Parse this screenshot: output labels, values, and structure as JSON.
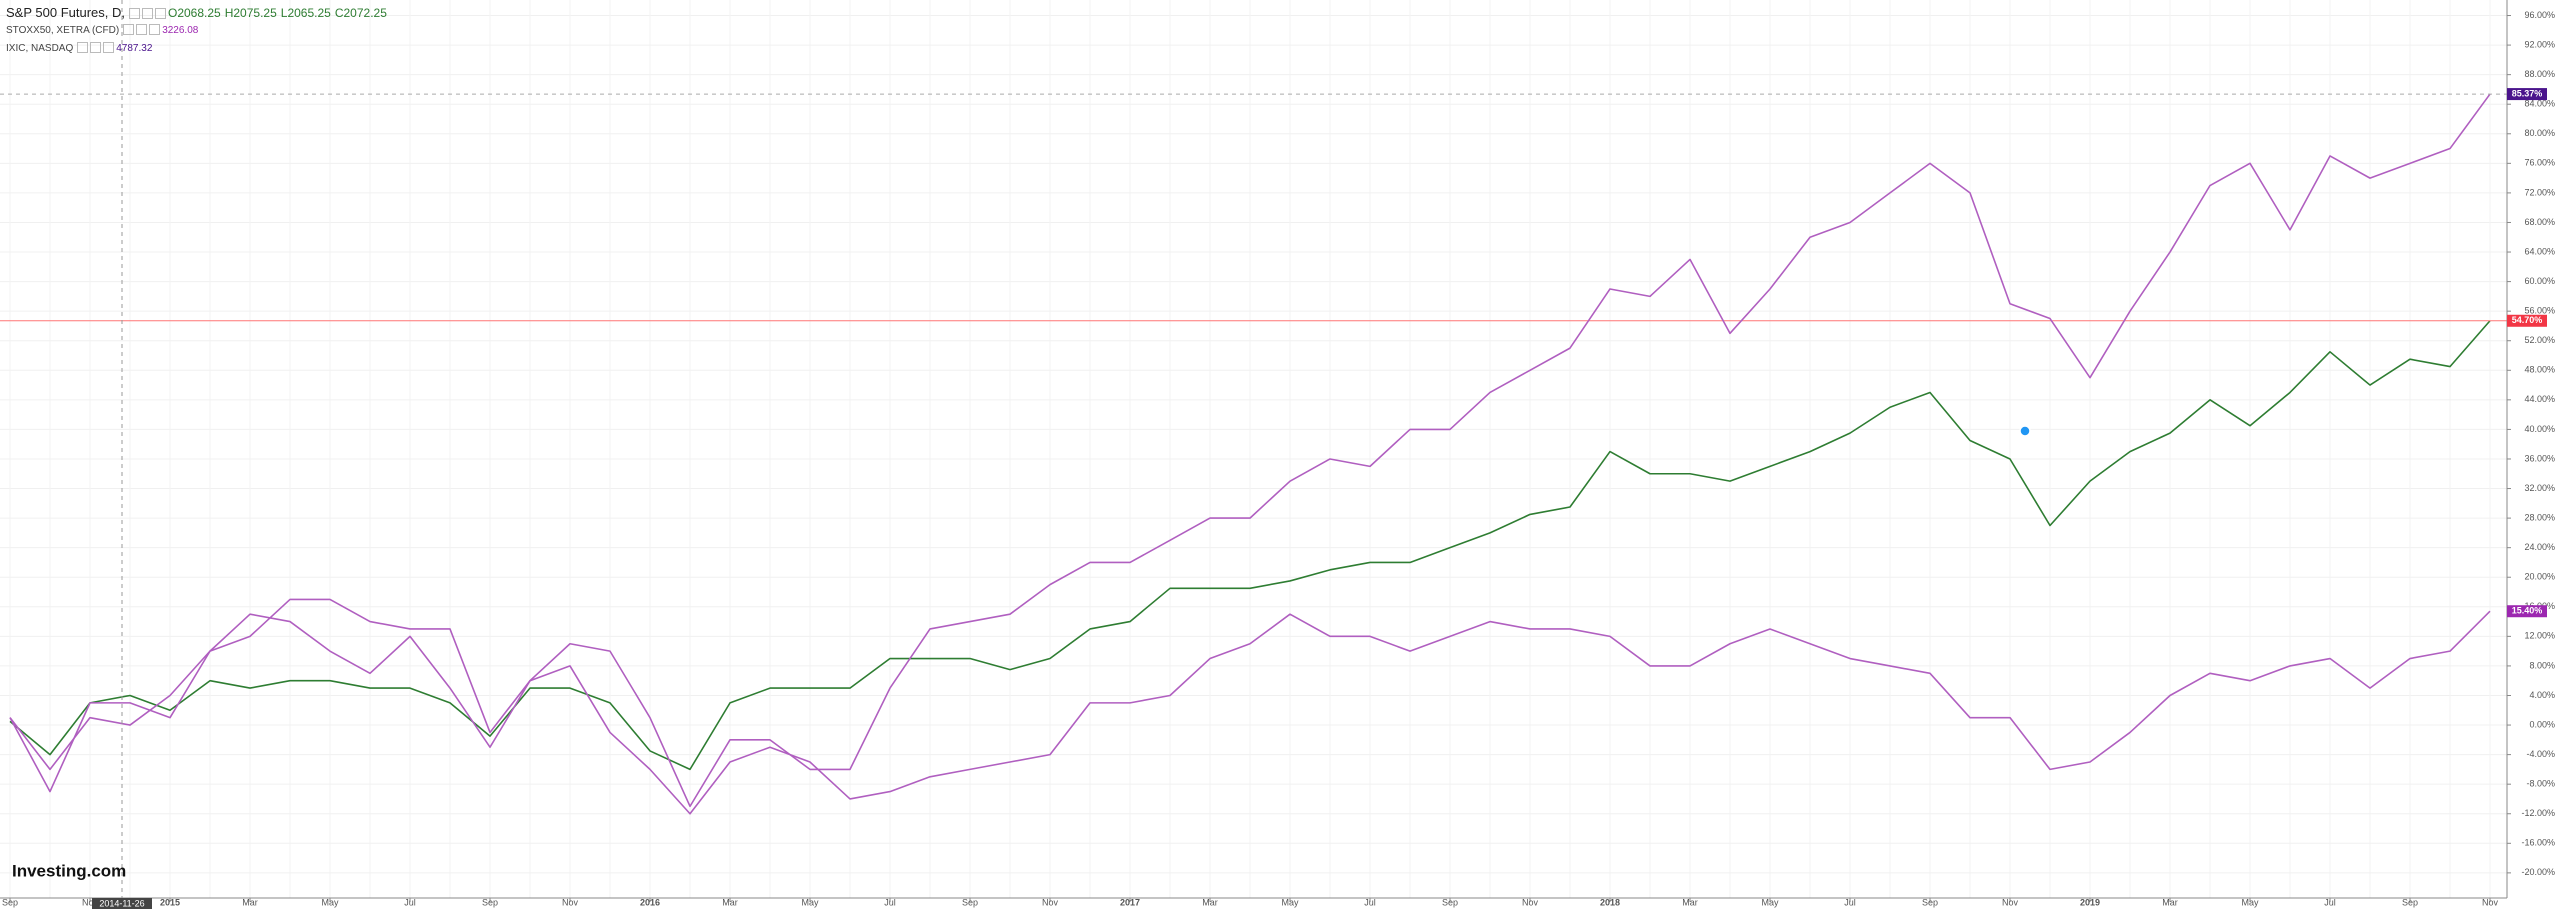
{
  "chart_data": {
    "type": "line",
    "categories": [
      "Sep",
      null,
      "Nov",
      null,
      "2015",
      null,
      "Mar",
      null,
      "May",
      null,
      "Jul",
      null,
      "Sep",
      null,
      "Nov",
      null,
      "2016",
      null,
      "Mar",
      null,
      "May",
      null,
      "Jul",
      null,
      "Sep",
      null,
      "Nov",
      null,
      "2017",
      null,
      "Mar",
      null,
      "May",
      null,
      "Jul",
      null,
      "Sep",
      null,
      "Nov",
      null,
      "2018",
      null,
      "Mar",
      null,
      "May",
      null,
      "Jul",
      null,
      "Sep",
      null,
      "Nov",
      null,
      "2019",
      null,
      "Mar",
      null,
      "May",
      null,
      "Jul",
      null,
      "Sep",
      null,
      "Nov"
    ],
    "series": [
      {
        "name": "S&P 500 Futures, D,",
        "quote": [
          "O2068.25",
          "H2075.25",
          "L2065.25",
          "C2072.25"
        ],
        "color": "#2e7d32",
        "badge_color": "#f23645",
        "price_line": "solid",
        "last_label": "54.70%",
        "values": [
          0.5,
          -4,
          3,
          4,
          2,
          6,
          5,
          6,
          6,
          5,
          5,
          3,
          -1.5,
          5,
          5,
          3,
          -3.5,
          -6,
          3,
          5,
          5,
          5,
          9,
          9,
          9,
          7.5,
          9,
          13,
          14,
          18.5,
          18.5,
          18.5,
          19.5,
          21,
          22,
          22,
          24,
          26,
          28.5,
          29.5,
          37,
          34,
          34,
          33,
          35,
          37,
          39.5,
          43,
          45,
          38.5,
          36,
          27,
          33,
          37,
          39.5,
          44,
          40.5,
          45,
          50.5,
          46,
          49.5,
          48.5,
          54.7
        ]
      },
      {
        "name": "STOXX50, XETRA (CFD)",
        "quote": [
          "3226.08"
        ],
        "color": "#b05fc0",
        "badge_color": "#9c27b0",
        "price_line": "none",
        "last_label": "15.40%",
        "values": [
          1,
          -6,
          1,
          0,
          4,
          10,
          15,
          14,
          10,
          7,
          12,
          5,
          -3,
          6,
          8,
          -1,
          -6,
          -12,
          -5,
          -3,
          -5,
          -10,
          -9,
          -7,
          -6,
          -5,
          -4,
          3,
          3,
          4,
          9,
          11,
          15,
          12,
          12,
          10,
          12,
          14,
          13,
          13,
          12,
          8,
          8,
          11,
          13,
          11,
          9,
          8,
          7,
          1,
          1,
          -6,
          -5,
          -1,
          4,
          7,
          6,
          8,
          9,
          5,
          9,
          10,
          15.4
        ]
      },
      {
        "name": "IXIC, NASDAQ",
        "quote": [
          "4787.32"
        ],
        "color": "#b05fc0",
        "badge_color": "#4a148c",
        "price_line": "dashed",
        "last_label": "85.37%",
        "values": [
          1,
          -9,
          3,
          3,
          1,
          10,
          12,
          17,
          17,
          14,
          13,
          13,
          -1,
          6,
          11,
          10,
          1,
          -11,
          -2,
          -2,
          -6,
          -6,
          5,
          13,
          14,
          15,
          19,
          22,
          22,
          25,
          28,
          28,
          33,
          36,
          35,
          40,
          40,
          45,
          48,
          51,
          59,
          58,
          63,
          53,
          59,
          66,
          68,
          72,
          76,
          72,
          57,
          55,
          47,
          56,
          64,
          73,
          76,
          67,
          77,
          74,
          76,
          78,
          85.37
        ]
      }
    ],
    "ylim": [
      -23.4,
      98.1
    ],
    "yticks": [
      {
        "value": 96,
        "label": "96.00%"
      },
      {
        "value": 92,
        "label": "92.00%"
      },
      {
        "value": 88,
        "label": "88.00%"
      },
      {
        "value": 84,
        "label": "84.00%"
      },
      {
        "value": 80,
        "label": "80.00%"
      },
      {
        "value": 76,
        "label": "76.00%"
      },
      {
        "value": 72,
        "label": "72.00%"
      },
      {
        "value": 68,
        "label": "68.00%"
      },
      {
        "value": 64,
        "label": "64.00%"
      },
      {
        "value": 60,
        "label": "60.00%"
      },
      {
        "value": 56,
        "label": "56.00%"
      },
      {
        "value": 52,
        "label": "52.00%"
      },
      {
        "value": 48,
        "label": "48.00%"
      },
      {
        "value": 44,
        "label": "44.00%"
      },
      {
        "value": 40,
        "label": "40.00%"
      },
      {
        "value": 36,
        "label": "36.00%"
      },
      {
        "value": 32,
        "label": "32.00%"
      },
      {
        "value": 28,
        "label": "28.00%"
      },
      {
        "value": 24,
        "label": "24.00%"
      },
      {
        "value": 20,
        "label": "20.00%"
      },
      {
        "value": 16,
        "label": "16.00%"
      },
      {
        "value": 12,
        "label": "12.00%"
      },
      {
        "value": 8,
        "label": "8.00%"
      },
      {
        "value": 4,
        "label": "4.00%"
      },
      {
        "value": 0,
        "label": "0.00%"
      },
      {
        "value": -4,
        "label": "-4.00%"
      },
      {
        "value": -8,
        "label": "-8.00%"
      },
      {
        "value": -12,
        "label": "-12.00%"
      },
      {
        "value": -16,
        "label": "-16.00%"
      },
      {
        "value": -20,
        "label": "-20.00%"
      }
    ],
    "grid": true,
    "crosshair_label": "2014-11-26",
    "watermark": "Investing.com"
  }
}
